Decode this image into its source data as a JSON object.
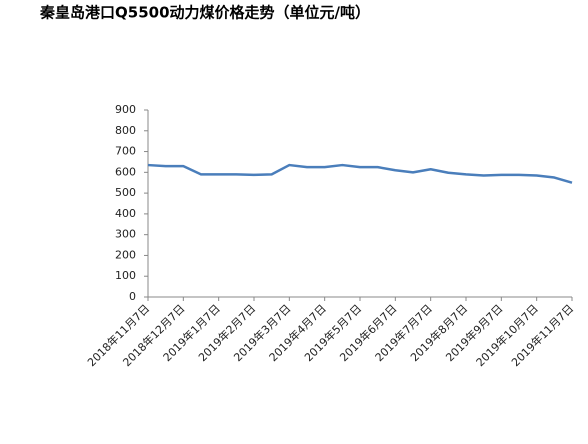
{
  "chart_data": {
    "type": "line",
    "title": "秦皇岛港口Q5500动力煤价格走势（单位元/吨）",
    "categories": [
      "2018年11月7日",
      null,
      "2018年12月7日",
      null,
      "2019年1月7日",
      null,
      "2019年2月7日",
      null,
      "2019年3月7日",
      null,
      "2019年4月7日",
      null,
      "2019年5月7日",
      null,
      "2019年6月7日",
      null,
      "2019年7月7日",
      null,
      "2019年8月7日",
      null,
      "2019年9月7日",
      null,
      "2019年10月7日",
      null,
      "2019年11月7日"
    ],
    "series": [
      {
        "color": "#4a7ebb",
        "values": [
          635,
          630,
          630,
          590,
          590,
          590,
          588,
          590,
          635,
          625,
          625,
          635,
          625,
          625,
          610,
          600,
          615,
          598,
          590,
          585,
          588,
          588,
          585,
          575,
          550
        ]
      }
    ],
    "ylim": [
      0,
      900
    ],
    "yticks": [
      0,
      100,
      200,
      300,
      400,
      500,
      600,
      700,
      800,
      900
    ],
    "grid": false
  }
}
